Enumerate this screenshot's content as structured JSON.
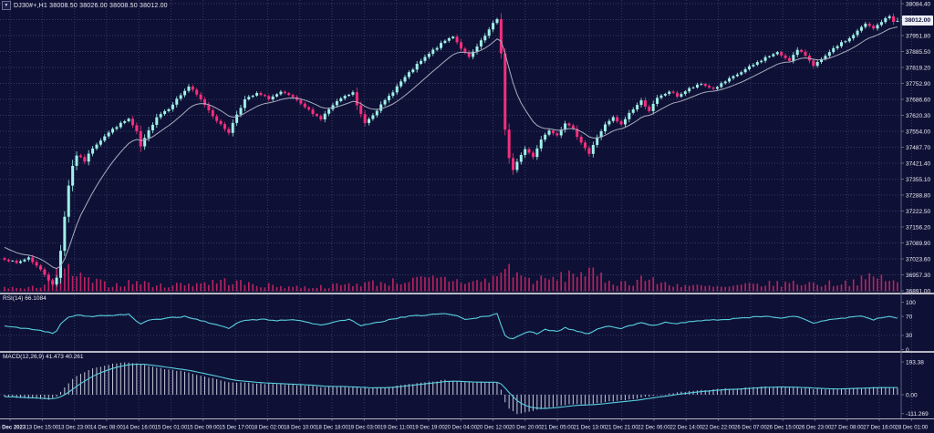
{
  "window": {
    "title_line": "DJ30#+,H1 38008.50 38026.00 38008.50 38012.00",
    "dropdown_icon": "▼"
  },
  "main_panel": {
    "price_axis_labels": [
      "38084.40",
      "38018.10",
      "37951.80",
      "37885.50",
      "37819.20",
      "37752.90",
      "37686.60",
      "37620.30",
      "37554.00",
      "37487.70",
      "37421.40",
      "37355.10",
      "37288.80",
      "37222.50",
      "37156.20",
      "37089.90",
      "37023.60",
      "36957.30",
      "36891.00"
    ],
    "current_price": "38012.00"
  },
  "rsi_panel": {
    "label": "RSI(14) 66.1084",
    "axis_labels": [
      "100",
      "70",
      "30",
      "0"
    ],
    "axis_values": [
      100,
      70,
      30,
      0
    ],
    "levels": [
      70,
      30
    ]
  },
  "macd_panel": {
    "label": "MACD(12,26,9) 41.473 40.261",
    "axis_labels": [
      "193.38",
      "0.00",
      "-111.269"
    ],
    "axis_values": [
      193.38,
      0,
      -111.269
    ]
  },
  "time_axis": {
    "labels": [
      "13 Dec 2023",
      "13 Dec 15:00",
      "13 Dec 23:00",
      "14 Dec 08:00",
      "14 Dec 16:00",
      "15 Dec 01:00",
      "15 Dec 09:00",
      "15 Dec 17:00",
      "18 Dec 02:00",
      "18 Dec 10:00",
      "18 Dec 18:00",
      "19 Dec 03:00",
      "19 Dec 11:00",
      "19 Dec 19:00",
      "20 Dec 04:00",
      "20 Dec 12:00",
      "20 Dec 20:00",
      "21 Dec 05:00",
      "21 Dec 13:00",
      "21 Dec 21:00",
      "22 Dec 06:00",
      "22 Dec 14:00",
      "22 Dec 22:00",
      "26 Dec 07:00",
      "26 Dec 15:00",
      "26 Dec 23:00",
      "27 Dec 08:00",
      "27 Dec 16:00",
      "28 Dec 01:00"
    ]
  },
  "colors": {
    "background": "#0e1135",
    "grid": "#353b69",
    "bull": "#9ff0e8",
    "bear": "#f72e7d",
    "volume": "#bb2360",
    "ma_line": "#a9adbf",
    "rsi_line": "#59cfe0",
    "macd_signal": "#59cfe0",
    "macd_histogram": "#c6c9d8",
    "separator": "#b7b7c3",
    "axis_line": "#5b6184",
    "axis_text": "#e9e9f2",
    "price_tag_bg": "#eceef5",
    "price_tag_text": "#11143c"
  },
  "chart_data": {
    "type": "candlestick",
    "title": "DJ30#+ H1 with RSI(14) and MACD(12,26,9)",
    "symbol": "DJ30#+",
    "timeframe": "H1",
    "current_ohlc": {
      "open": 38008.5,
      "high": 38026.0,
      "low": 38008.5,
      "close": 38012.0
    },
    "x_range": [
      "13 Dec 2023",
      "28 Dec 01:00"
    ],
    "y_range": [
      36891.0,
      38084.4
    ],
    "grid_step": 66.3,
    "candle_count": 224,
    "close_waypoints": [
      [
        0,
        37025
      ],
      [
        3,
        37005
      ],
      [
        6,
        37030
      ],
      [
        8,
        36995
      ],
      [
        10,
        36960
      ],
      [
        12,
        36915
      ],
      [
        13,
        36945
      ],
      [
        14,
        37060
      ],
      [
        15,
        37200
      ],
      [
        16,
        37330
      ],
      [
        17,
        37410
      ],
      [
        18,
        37455
      ],
      [
        20,
        37430
      ],
      [
        22,
        37485
      ],
      [
        25,
        37535
      ],
      [
        28,
        37575
      ],
      [
        31,
        37605
      ],
      [
        33,
        37550
      ],
      [
        34,
        37490
      ],
      [
        36,
        37555
      ],
      [
        38,
        37615
      ],
      [
        41,
        37650
      ],
      [
        44,
        37705
      ],
      [
        46,
        37740
      ],
      [
        48,
        37705
      ],
      [
        50,
        37665
      ],
      [
        52,
        37620
      ],
      [
        54,
        37580
      ],
      [
        56,
        37550
      ],
      [
        58,
        37625
      ],
      [
        60,
        37685
      ],
      [
        63,
        37710
      ],
      [
        66,
        37690
      ],
      [
        69,
        37715
      ],
      [
        72,
        37695
      ],
      [
        74,
        37665
      ],
      [
        77,
        37630
      ],
      [
        79,
        37605
      ],
      [
        81,
        37645
      ],
      [
        84,
        37690
      ],
      [
        87,
        37715
      ],
      [
        88,
        37660
      ],
      [
        90,
        37590
      ],
      [
        92,
        37625
      ],
      [
        95,
        37680
      ],
      [
        99,
        37760
      ],
      [
        103,
        37830
      ],
      [
        107,
        37890
      ],
      [
        110,
        37930
      ],
      [
        112,
        37950
      ],
      [
        114,
        37900
      ],
      [
        116,
        37860
      ],
      [
        118,
        37905
      ],
      [
        120,
        37950
      ],
      [
        122,
        38000
      ],
      [
        123,
        38020
      ],
      [
        124,
        37880
      ],
      [
        125,
        37560
      ],
      [
        126,
        37440
      ],
      [
        127,
        37390
      ],
      [
        128,
        37430
      ],
      [
        130,
        37480
      ],
      [
        132,
        37450
      ],
      [
        134,
        37520
      ],
      [
        136,
        37560
      ],
      [
        138,
        37540
      ],
      [
        140,
        37590
      ],
      [
        142,
        37560
      ],
      [
        144,
        37510
      ],
      [
        146,
        37460
      ],
      [
        148,
        37530
      ],
      [
        150,
        37580
      ],
      [
        152,
        37610
      ],
      [
        154,
        37580
      ],
      [
        156,
        37630
      ],
      [
        159,
        37680
      ],
      [
        161,
        37640
      ],
      [
        163,
        37690
      ],
      [
        166,
        37720
      ],
      [
        168,
        37700
      ],
      [
        171,
        37730
      ],
      [
        174,
        37750
      ],
      [
        177,
        37730
      ],
      [
        181,
        37770
      ],
      [
        184,
        37800
      ],
      [
        187,
        37830
      ],
      [
        190,
        37860
      ],
      [
        193,
        37880
      ],
      [
        196,
        37850
      ],
      [
        198,
        37890
      ],
      [
        200,
        37870
      ],
      [
        202,
        37830
      ],
      [
        204,
        37850
      ],
      [
        206,
        37880
      ],
      [
        208,
        37910
      ],
      [
        211,
        37940
      ],
      [
        213,
        37970
      ],
      [
        215,
        38000
      ],
      [
        217,
        37980
      ],
      [
        219,
        38010
      ],
      [
        221,
        38032
      ],
      [
        222,
        38008.5
      ],
      [
        223,
        38012
      ]
    ],
    "volume_waypoints": [
      [
        0,
        0.18
      ],
      [
        5,
        0.1
      ],
      [
        9,
        0.22
      ],
      [
        12,
        0.55
      ],
      [
        14,
        0.85
      ],
      [
        16,
        0.95
      ],
      [
        18,
        0.6
      ],
      [
        22,
        0.4
      ],
      [
        27,
        0.25
      ],
      [
        33,
        0.38
      ],
      [
        39,
        0.22
      ],
      [
        45,
        0.3
      ],
      [
        51,
        0.36
      ],
      [
        56,
        0.42
      ],
      [
        62,
        0.26
      ],
      [
        70,
        0.2
      ],
      [
        76,
        0.16
      ],
      [
        82,
        0.22
      ],
      [
        89,
        0.32
      ],
      [
        95,
        0.36
      ],
      [
        103,
        0.45
      ],
      [
        110,
        0.5
      ],
      [
        116,
        0.36
      ],
      [
        121,
        0.45
      ],
      [
        123,
        0.6
      ],
      [
        125,
        1.0
      ],
      [
        127,
        0.85
      ],
      [
        130,
        0.5
      ],
      [
        135,
        0.45
      ],
      [
        139,
        0.55
      ],
      [
        142,
        0.75
      ],
      [
        145,
        0.8
      ],
      [
        148,
        0.6
      ],
      [
        152,
        0.38
      ],
      [
        156,
        0.32
      ],
      [
        159,
        0.55
      ],
      [
        163,
        0.36
      ],
      [
        168,
        0.26
      ],
      [
        174,
        0.2
      ],
      [
        180,
        0.16
      ],
      [
        186,
        0.26
      ],
      [
        192,
        0.3
      ],
      [
        198,
        0.34
      ],
      [
        204,
        0.3
      ],
      [
        210,
        0.36
      ],
      [
        214,
        0.45
      ],
      [
        218,
        0.58
      ],
      [
        221,
        0.48
      ],
      [
        223,
        0.3
      ]
    ],
    "overlays": [
      {
        "name": "MA",
        "period": 13,
        "seed": 37080
      }
    ],
    "rsi": {
      "period": 14,
      "current": 66.1084,
      "range": [
        0,
        100
      ],
      "waypoints": [
        [
          0,
          50
        ],
        [
          4,
          46
        ],
        [
          8,
          42
        ],
        [
          11,
          37
        ],
        [
          12,
          34
        ],
        [
          13,
          40
        ],
        [
          14,
          55
        ],
        [
          16,
          68
        ],
        [
          18,
          73
        ],
        [
          22,
          70
        ],
        [
          26,
          72
        ],
        [
          31,
          74
        ],
        [
          33,
          60
        ],
        [
          34,
          54
        ],
        [
          36,
          61
        ],
        [
          40,
          66
        ],
        [
          45,
          70
        ],
        [
          48,
          64
        ],
        [
          52,
          54
        ],
        [
          56,
          45
        ],
        [
          58,
          55
        ],
        [
          60,
          62
        ],
        [
          64,
          64
        ],
        [
          68,
          61
        ],
        [
          72,
          64
        ],
        [
          76,
          57
        ],
        [
          79,
          51
        ],
        [
          82,
          58
        ],
        [
          86,
          64
        ],
        [
          89,
          50
        ],
        [
          92,
          55
        ],
        [
          95,
          61
        ],
        [
          100,
          69
        ],
        [
          105,
          73
        ],
        [
          110,
          76
        ],
        [
          113,
          71
        ],
        [
          115,
          63
        ],
        [
          118,
          67
        ],
        [
          122,
          73
        ],
        [
          123,
          75
        ],
        [
          124,
          52
        ],
        [
          125,
          30
        ],
        [
          126,
          25
        ],
        [
          127,
          23
        ],
        [
          129,
          32
        ],
        [
          131,
          38
        ],
        [
          133,
          33
        ],
        [
          135,
          42
        ],
        [
          138,
          39
        ],
        [
          140,
          46
        ],
        [
          143,
          39
        ],
        [
          146,
          33
        ],
        [
          148,
          44
        ],
        [
          151,
          50
        ],
        [
          154,
          45
        ],
        [
          157,
          52
        ],
        [
          159,
          56
        ],
        [
          162,
          51
        ],
        [
          165,
          58
        ],
        [
          168,
          55
        ],
        [
          172,
          60
        ],
        [
          176,
          62
        ],
        [
          181,
          64
        ],
        [
          186,
          68
        ],
        [
          190,
          70
        ],
        [
          194,
          67
        ],
        [
          198,
          70
        ],
        [
          202,
          56
        ],
        [
          205,
          61
        ],
        [
          208,
          65
        ],
        [
          211,
          68
        ],
        [
          214,
          70
        ],
        [
          217,
          63
        ],
        [
          219,
          67
        ],
        [
          221,
          70
        ],
        [
          223,
          66.11
        ]
      ]
    },
    "macd": {
      "fast": 12,
      "slow": 26,
      "signal_period": 9,
      "current_main": 41.473,
      "current_signal": 40.261,
      "range": [
        -111.269,
        193.38
      ],
      "main_waypoints": [
        [
          0,
          -12
        ],
        [
          4,
          -18
        ],
        [
          8,
          -24
        ],
        [
          11,
          -30
        ],
        [
          13,
          -8
        ],
        [
          15,
          45
        ],
        [
          17,
          95
        ],
        [
          19,
          125
        ],
        [
          22,
          155
        ],
        [
          26,
          178
        ],
        [
          30,
          193.38
        ],
        [
          33,
          183
        ],
        [
          36,
          168
        ],
        [
          40,
          152
        ],
        [
          44,
          140
        ],
        [
          48,
          120
        ],
        [
          52,
          96
        ],
        [
          56,
          76
        ],
        [
          60,
          70
        ],
        [
          64,
          67
        ],
        [
          68,
          62
        ],
        [
          72,
          59
        ],
        [
          76,
          52
        ],
        [
          80,
          45
        ],
        [
          84,
          48
        ],
        [
          88,
          41
        ],
        [
          92,
          38
        ],
        [
          96,
          45
        ],
        [
          100,
          60
        ],
        [
          105,
          75
        ],
        [
          110,
          86
        ],
        [
          114,
          76
        ],
        [
          118,
          70
        ],
        [
          122,
          76
        ],
        [
          123,
          72
        ],
        [
          124,
          28
        ],
        [
          125,
          -42
        ],
        [
          126,
          -82
        ],
        [
          127,
          -100
        ],
        [
          128,
          -111.27
        ],
        [
          130,
          -104
        ],
        [
          133,
          -90
        ],
        [
          136,
          -76
        ],
        [
          139,
          -62
        ],
        [
          142,
          -56
        ],
        [
          145,
          -60
        ],
        [
          148,
          -50
        ],
        [
          151,
          -41
        ],
        [
          154,
          -34
        ],
        [
          157,
          -25
        ],
        [
          160,
          -14
        ],
        [
          163,
          -4
        ],
        [
          166,
          6
        ],
        [
          169,
          15
        ],
        [
          172,
          22
        ],
        [
          176,
          30
        ],
        [
          180,
          35
        ],
        [
          184,
          40
        ],
        [
          188,
          46
        ],
        [
          192,
          48
        ],
        [
          196,
          44
        ],
        [
          200,
          38
        ],
        [
          204,
          32
        ],
        [
          208,
          35
        ],
        [
          212,
          40
        ],
        [
          216,
          42
        ],
        [
          219,
          44
        ],
        [
          221,
          43
        ],
        [
          223,
          41.47
        ]
      ]
    }
  }
}
